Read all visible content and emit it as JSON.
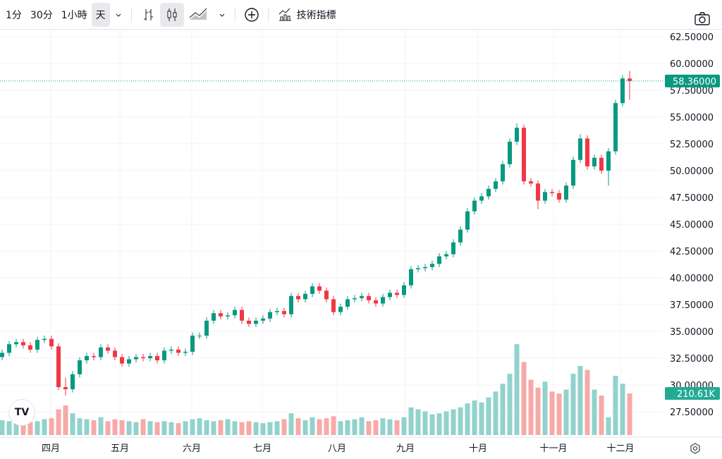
{
  "toolbar": {
    "intervals": [
      "1分",
      "30分",
      "1小時",
      "天"
    ],
    "active_interval": "天",
    "indicators_label": "技術指標",
    "icons": [
      "chevron-down-icon",
      "bar-chart-icon",
      "candlestick-icon",
      "area-chart-icon",
      "chevron-down-icon",
      "add-circle-icon",
      "indicators-icon",
      "camera-icon"
    ]
  },
  "colors": {
    "up": "#089981",
    "down": "#f23645",
    "up_volume": "#92d2cc",
    "down_volume": "#f7a9a7",
    "grid": "#f0f3fa",
    "price_line": "#089981"
  },
  "chart_data": {
    "type": "candlestick",
    "price_axis": {
      "ticks": [
        "62.50000",
        "60.00000",
        "57.50000",
        "55.00000",
        "52.50000",
        "50.00000",
        "47.50000",
        "45.00000",
        "42.50000",
        "40.00000",
        "37.50000",
        "35.00000",
        "32.50000",
        "30.00000",
        "27.50000"
      ],
      "range": [
        27.5,
        62.5
      ]
    },
    "time_axis": {
      "ticks": [
        "四月",
        "五月",
        "六月",
        "七月",
        "八月",
        "九月",
        "十月",
        "十一月",
        "十二月"
      ]
    },
    "last_price": "58.36000",
    "last_volume": "210.61K",
    "close": [
      33.0,
      33.8,
      34.0,
      33.7,
      33.3,
      34.2,
      34.3,
      33.6,
      29.8,
      29.6,
      31.0,
      32.3,
      32.7,
      32.6,
      33.5,
      33.2,
      32.6,
      32.0,
      32.4,
      32.6,
      32.5,
      32.7,
      32.3,
      33.2,
      33.3,
      33.0,
      33.1,
      34.6,
      34.6,
      36.0,
      36.7,
      36.4,
      36.5,
      37.0,
      36.0,
      35.7,
      36.0,
      36.2,
      36.8,
      36.9,
      36.6,
      38.3,
      38.0,
      38.5,
      39.2,
      38.8,
      38.0,
      36.8,
      37.3,
      38.0,
      38.1,
      38.3,
      37.9,
      37.6,
      38.2,
      38.6,
      38.4,
      39.3,
      40.8,
      40.9,
      41.0,
      41.3,
      42.0,
      42.2,
      43.3,
      44.5,
      46.2,
      47.2,
      47.6,
      48.3,
      49.0,
      50.6,
      52.7,
      54.0,
      49.0,
      48.8,
      47.2,
      48.0,
      47.9,
      47.3,
      48.6,
      51.0,
      53.0,
      50.4,
      51.2,
      50.0,
      51.8,
      56.3,
      58.6,
      58.36
    ],
    "open": [
      32.6,
      33.0,
      33.8,
      34.0,
      33.7,
      33.3,
      34.2,
      34.3,
      33.6,
      29.8,
      29.6,
      31.0,
      32.3,
      32.7,
      32.6,
      33.5,
      33.2,
      32.6,
      32.0,
      32.4,
      32.6,
      32.5,
      32.7,
      32.3,
      33.2,
      33.3,
      33.0,
      33.1,
      34.6,
      34.6,
      36.0,
      36.7,
      36.4,
      36.5,
      37.0,
      36.0,
      35.7,
      36.0,
      36.2,
      36.8,
      36.9,
      36.6,
      38.3,
      38.0,
      38.5,
      39.2,
      38.8,
      38.0,
      36.8,
      37.3,
      38.0,
      38.1,
      38.3,
      37.9,
      37.6,
      38.2,
      38.6,
      38.4,
      39.3,
      40.8,
      40.9,
      41.0,
      41.3,
      42.0,
      42.2,
      43.3,
      44.5,
      46.2,
      47.2,
      47.6,
      48.3,
      49.0,
      50.6,
      52.7,
      54.0,
      49.0,
      48.8,
      47.2,
      48.0,
      47.9,
      47.3,
      48.6,
      51.0,
      53.0,
      50.4,
      51.2,
      50.0,
      51.8,
      56.3,
      58.6
    ],
    "high": [
      33.3,
      34.1,
      34.3,
      34.3,
      34.0,
      34.5,
      34.6,
      34.6,
      33.9,
      30.7,
      31.3,
      32.6,
      33.0,
      33.0,
      33.8,
      33.8,
      33.5,
      32.9,
      32.7,
      32.9,
      32.9,
      33.0,
      33.0,
      33.5,
      33.6,
      33.6,
      33.4,
      34.9,
      34.9,
      36.3,
      37.0,
      37.0,
      36.8,
      37.3,
      37.3,
      36.3,
      36.3,
      36.5,
      37.1,
      37.2,
      37.2,
      38.6,
      38.6,
      38.8,
      39.5,
      39.5,
      39.1,
      38.3,
      37.6,
      38.3,
      38.4,
      38.6,
      38.6,
      38.2,
      38.5,
      38.9,
      38.9,
      39.6,
      41.1,
      41.2,
      41.3,
      41.6,
      42.3,
      42.5,
      43.6,
      44.8,
      46.5,
      47.5,
      47.9,
      48.6,
      49.3,
      50.9,
      53.0,
      54.4,
      54.3,
      49.3,
      49.1,
      48.3,
      48.3,
      48.2,
      48.9,
      51.3,
      53.4,
      53.3,
      51.5,
      51.5,
      52.1,
      56.6,
      58.9,
      59.3
    ],
    "low": [
      32.3,
      32.7,
      33.5,
      33.4,
      33.0,
      33.0,
      33.9,
      33.3,
      29.5,
      29.0,
      29.3,
      30.7,
      32.0,
      32.3,
      32.3,
      32.9,
      32.3,
      31.7,
      31.7,
      32.1,
      32.2,
      32.2,
      32.0,
      32.0,
      32.9,
      32.7,
      32.7,
      32.8,
      34.3,
      34.3,
      35.7,
      36.1,
      36.1,
      36.2,
      35.7,
      35.4,
      35.4,
      35.7,
      35.9,
      36.5,
      36.3,
      36.3,
      37.7,
      37.7,
      38.2,
      38.5,
      37.7,
      36.5,
      36.5,
      37.0,
      37.7,
      37.8,
      37.6,
      37.3,
      37.3,
      37.9,
      38.1,
      38.1,
      39.0,
      40.5,
      40.6,
      40.7,
      41.0,
      41.7,
      41.9,
      43.0,
      44.2,
      45.9,
      46.9,
      47.3,
      48.0,
      48.7,
      50.3,
      52.4,
      48.7,
      48.5,
      46.4,
      46.9,
      47.6,
      47.0,
      47.0,
      48.3,
      50.7,
      50.1,
      50.1,
      49.7,
      48.6,
      51.5,
      56.0,
      56.6
    ],
    "volume_k": [
      75,
      70,
      65,
      60,
      65,
      70,
      80,
      85,
      130,
      150,
      110,
      85,
      80,
      75,
      90,
      70,
      80,
      75,
      70,
      65,
      80,
      70,
      65,
      70,
      65,
      60,
      70,
      80,
      85,
      75,
      70,
      75,
      80,
      70,
      65,
      70,
      65,
      60,
      65,
      70,
      80,
      110,
      85,
      75,
      90,
      80,
      85,
      95,
      70,
      75,
      80,
      90,
      70,
      75,
      85,
      80,
      75,
      90,
      140,
      130,
      120,
      105,
      110,
      120,
      130,
      140,
      160,
      175,
      165,
      190,
      220,
      260,
      310,
      460,
      370,
      280,
      240,
      270,
      220,
      210,
      230,
      310,
      350,
      330,
      230,
      200,
      90,
      300,
      260,
      210.61
    ]
  }
}
